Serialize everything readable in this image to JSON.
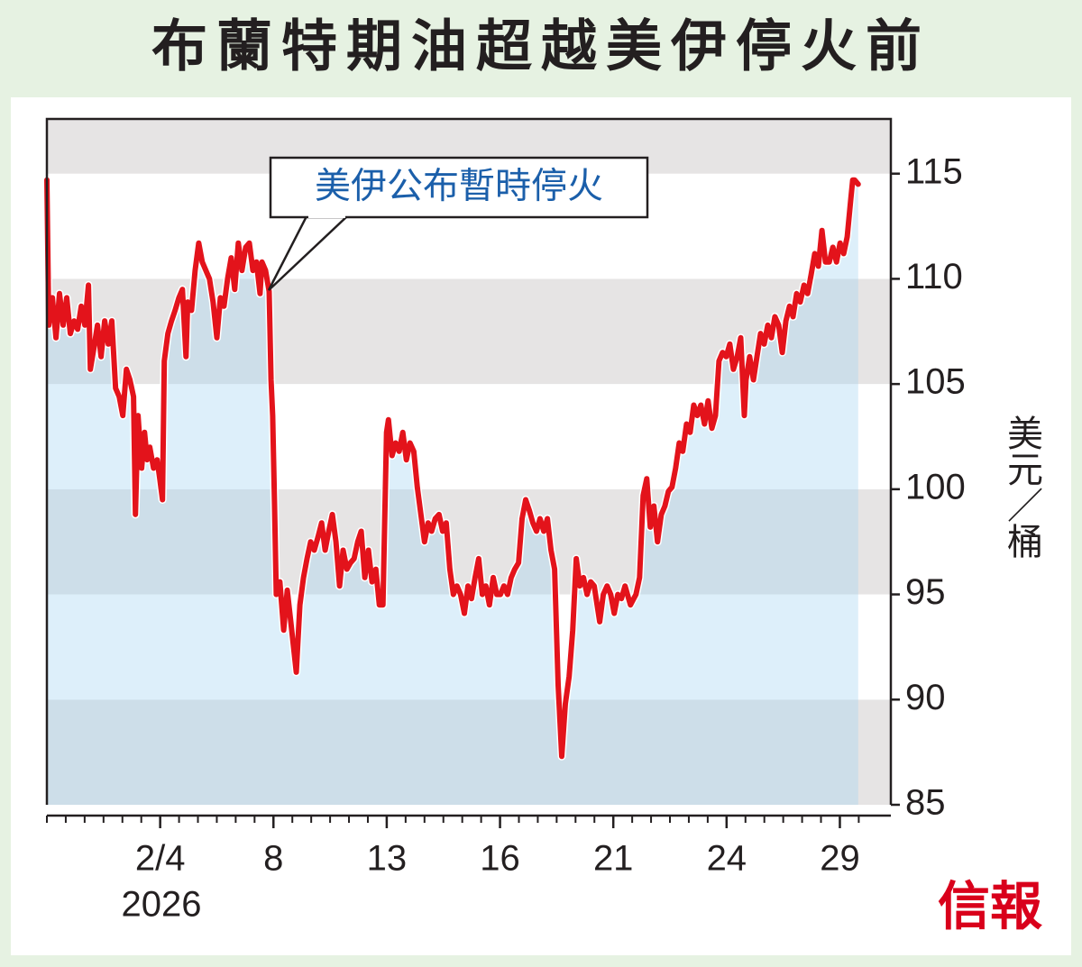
{
  "chart_data": {
    "type": "line",
    "title": "布蘭特期油超越美伊停火前",
    "annotation": "美伊公布暫時停火",
    "ylabel": "美元／桶",
    "xlabel": "2026",
    "source": "信報",
    "color": "#e3131b",
    "x": [
      0,
      0.1,
      0.29,
      0.48,
      0.67,
      0.86,
      1.05,
      1.24,
      1.44,
      1.63,
      1.82,
      2.01,
      2.2,
      2.3,
      2.49,
      2.68,
      2.87,
      3.06,
      3.25,
      3.44,
      3.64,
      3.83,
      4.02,
      4.21,
      4.4,
      4.59,
      4.69,
      4.83,
      5.02,
      5.17,
      5.31,
      5.45,
      5.65,
      5.84,
      5.98,
      6.12,
      6.22,
      6.41,
      6.6,
      6.79,
      6.99,
      7.18,
      7.37,
      7.46,
      7.66,
      7.85,
      8.04,
      8.23,
      8.42,
      8.61,
      8.8,
      9.0,
      9.19,
      9.38,
      9.57,
      9.76,
      9.95,
      10.14,
      10.33,
      10.53,
      10.72,
      10.91,
      11.1,
      11.29,
      11.39,
      11.58,
      11.77,
      11.87,
      11.96,
      12.06,
      12.15,
      12.34,
      12.54,
      12.73,
      12.92,
      13.21,
      13.4,
      13.59,
      13.78,
      13.97,
      14.16,
      14.35,
      14.55,
      14.74,
      14.93,
      15.12,
      15.31,
      15.5,
      15.69,
      15.89,
      16.08,
      16.27,
      16.46,
      16.65,
      16.84,
      17.03,
      17.22,
      17.42,
      17.61,
      17.8,
      17.99,
      18.09,
      18.28,
      18.47,
      18.66,
      18.85,
      19.04,
      19.23,
      19.43,
      19.62,
      19.81,
      20.0,
      20.19,
      20.38,
      20.57,
      20.77,
      20.96,
      21.15,
      21.34,
      21.53,
      21.72,
      21.91,
      22.11,
      22.3,
      22.49,
      22.68,
      22.87,
      23.06,
      23.25,
      23.44,
      23.64,
      23.83,
      24.02,
      24.21,
      24.4,
      24.59,
      24.78,
      24.98,
      25.17,
      25.36,
      25.55,
      25.74,
      25.93,
      26.12,
      26.32,
      26.51,
      26.7,
      26.89,
      27.08,
      27.27,
      27.46,
      27.66,
      27.85,
      28.04,
      28.23,
      28.42,
      28.61,
      28.8,
      28.99,
      29.28,
      29.47,
      29.67,
      29.86,
      30.05,
      30.24,
      30.43,
      30.62,
      30.91,
      31.2,
      31.39,
      31.58,
      31.77,
      31.96,
      32.15,
      32.34,
      32.54,
      32.73,
      32.92,
      33.11,
      33.3,
      33.49,
      33.68,
      33.88,
      34.07,
      34.26,
      34.45,
      34.64,
      34.83,
      35.02,
      35.22,
      35.41,
      35.6,
      35.79,
      35.98,
      36.17,
      36.36,
      36.56,
      36.75,
      36.94,
      37.03,
      37.22,
      37.42,
      37.61,
      37.8,
      37.99,
      38.18,
      38.37,
      38.56,
      38.76,
      38.95,
      39.14,
      39.33,
      39.52,
      39.71,
      39.9,
      40.1,
      40.29,
      40.48,
      40.67,
      40.86,
      41.05,
      41.24,
      41.44,
      41.63,
      41.82,
      42.01,
      42.2,
      42.39,
      42.58,
      42.68,
      42.78,
      42.97
    ],
    "values": [
      114.7,
      107.8,
      109.1,
      107.2,
      109.3,
      107.8,
      109.1,
      107.4,
      108.0,
      107.6,
      108.7,
      107.8,
      109.7,
      105.7,
      106.7,
      107.8,
      106.3,
      108.0,
      106.9,
      108.0,
      104.8,
      104.4,
      103.5,
      105.7,
      105.2,
      104.4,
      98.8,
      103.5,
      101.0,
      102.7,
      101.4,
      102.0,
      101.0,
      101.4,
      100.5,
      99.5,
      106.1,
      107.4,
      108.0,
      108.5,
      109.1,
      109.5,
      106.3,
      108.9,
      108.5,
      110.4,
      111.7,
      110.8,
      110.4,
      110.0,
      108.9,
      107.2,
      109.1,
      108.7,
      110.0,
      111.0,
      109.5,
      111.7,
      110.4,
      111.5,
      111.7,
      110.4,
      110.8,
      109.3,
      110.8,
      110.4,
      109.4,
      105.2,
      103.5,
      99.2,
      95.0,
      95.6,
      93.3,
      95.2,
      93.7,
      91.3,
      94.5,
      95.8,
      96.7,
      97.5,
      97.1,
      97.7,
      98.4,
      97.1,
      98.0,
      98.8,
      97.5,
      95.4,
      97.1,
      96.2,
      96.5,
      96.7,
      97.5,
      98.0,
      95.8,
      97.1,
      95.6,
      96.2,
      94.5,
      94.5,
      102.7,
      103.3,
      101.6,
      102.2,
      101.8,
      102.7,
      101.4,
      102.2,
      101.8,
      100.1,
      98.8,
      97.5,
      98.4,
      98.0,
      98.6,
      98.8,
      98.0,
      98.4,
      96.2,
      95.0,
      95.4,
      95.0,
      94.1,
      95.4,
      94.8,
      95.8,
      96.7,
      95.0,
      95.4,
      94.5,
      95.8,
      95.0,
      95.0,
      95.4,
      95.0,
      95.8,
      96.2,
      96.5,
      98.6,
      99.5,
      99.0,
      98.4,
      98.0,
      98.6,
      98.0,
      98.6,
      97.1,
      96.2,
      90.7,
      87.3,
      89.8,
      91.1,
      93.3,
      96.7,
      95.4,
      95.8,
      95.0,
      95.6,
      95.4,
      93.7,
      95.0,
      95.4,
      95.0,
      94.1,
      95.0,
      94.8,
      95.4,
      94.5,
      95.0,
      95.8,
      99.7,
      100.5,
      98.2,
      99.2,
      97.5,
      98.8,
      99.2,
      99.9,
      100.1,
      101.0,
      102.2,
      101.8,
      103.1,
      102.7,
      104.0,
      103.5,
      104.0,
      103.1,
      104.2,
      102.9,
      103.5,
      106.1,
      106.5,
      106.3,
      106.9,
      105.7,
      106.3,
      107.2,
      103.5,
      105.2,
      106.3,
      105.2,
      106.3,
      107.4,
      106.9,
      107.8,
      107.2,
      108.2,
      107.8,
      106.5,
      108.0,
      108.7,
      108.2,
      109.3,
      108.9,
      109.7,
      109.3,
      110.2,
      111.2,
      110.6,
      112.3,
      110.8,
      110.8,
      111.5,
      110.8,
      111.7,
      111.2,
      112.0,
      113.8,
      114.7,
      114.7,
      114.5
    ],
    "xlim": [
      0,
      44.7
    ],
    "xticks": [
      {
        "value": 6,
        "label": "2/4"
      },
      {
        "value": 12,
        "label": "8"
      },
      {
        "value": 18,
        "label": "13"
      },
      {
        "value": 24,
        "label": "16"
      },
      {
        "value": 30,
        "label": "21"
      },
      {
        "value": 36,
        "label": "24"
      },
      {
        "value": 42,
        "label": "29"
      }
    ],
    "xminorticks": [
      0,
      1,
      2,
      3,
      4,
      5,
      6,
      7,
      8,
      9,
      10,
      11,
      12,
      13,
      14,
      15,
      16,
      17,
      18,
      19,
      20,
      21,
      22,
      23,
      24,
      25,
      26,
      27,
      28,
      29,
      30,
      31,
      32,
      33,
      34,
      35,
      36,
      37,
      38,
      39,
      40,
      41,
      42,
      43
    ],
    "ylim": [
      85,
      117.6
    ],
    "yticks": [
      85,
      90,
      95,
      100,
      105,
      110,
      115
    ],
    "yaxis_side": "right",
    "banded_grid": true
  }
}
